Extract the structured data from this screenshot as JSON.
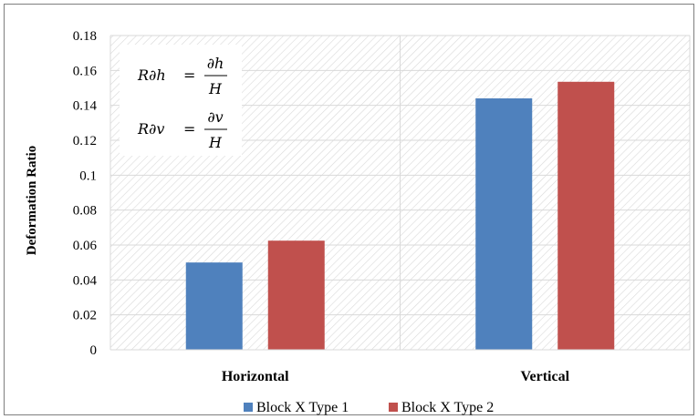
{
  "chart_data": {
    "type": "bar",
    "categories": [
      "Horizontal",
      "Vertical"
    ],
    "series": [
      {
        "name": "Block X Type 1",
        "color": "#4f81bd",
        "values": [
          0.05,
          0.144
        ]
      },
      {
        "name": "Block X Type 2",
        "color": "#c0504d",
        "values": [
          0.0625,
          0.1535
        ]
      }
    ],
    "ylabel": "Deformation Ratio",
    "xlabel": "",
    "ylim": [
      0,
      0.18
    ],
    "yticks": [
      "0",
      "0.02",
      "0.04",
      "0.06",
      "0.08",
      "0.1",
      "0.12",
      "0.14",
      "0.16",
      "0.18"
    ],
    "grid": true,
    "background_pattern": "diagonal-hatch",
    "legend_position": "bottom",
    "annotation": {
      "equations": [
        {
          "lhs": "R∂h",
          "op": "=",
          "num": "∂h",
          "den": "H"
        },
        {
          "lhs": "R∂v",
          "op": "=",
          "num": "∂v",
          "den": "H"
        }
      ]
    }
  }
}
